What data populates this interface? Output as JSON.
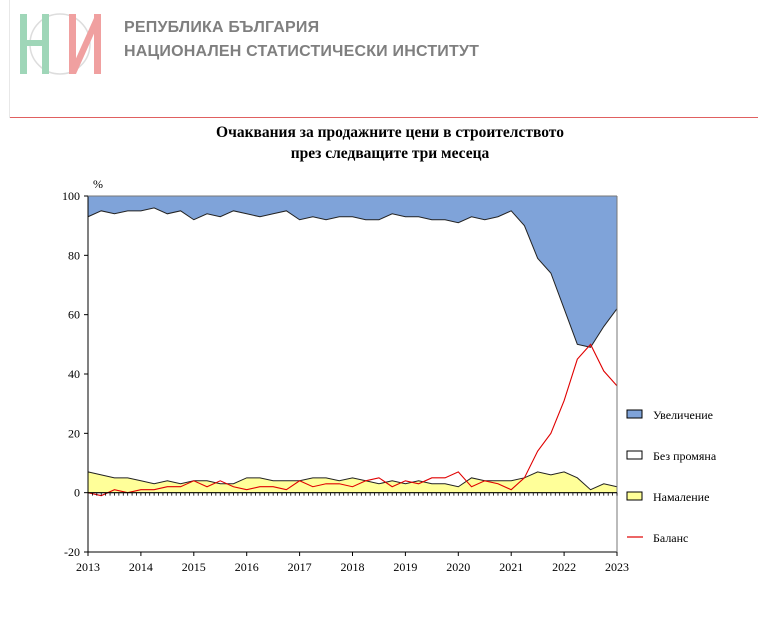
{
  "header": {
    "org_line1": "РЕПУБЛИКА БЪЛГАРИЯ",
    "org_line2": "НАЦИОНАЛЕН СТАТИСТИЧЕСКИ ИНСТИТУТ",
    "logo_text": "НИ"
  },
  "chart_data": {
    "type": "area",
    "title_line1": "Очаквания за продажните цени в строителството",
    "title_line2": "през следващите три месеца",
    "ylabel": "%",
    "xlabel": "",
    "ylim": [
      -20,
      100
    ],
    "yticks": [
      "100",
      "80",
      "60",
      "40",
      "20",
      "0",
      "-20"
    ],
    "xticks": [
      "2013",
      "2014",
      "2015",
      "2016",
      "2017",
      "2018",
      "2019",
      "2020",
      "2021",
      "2022",
      "2023"
    ],
    "grid": false,
    "legend_position": "right",
    "colors": {
      "increase": "#7fa3d9",
      "no_change": "#ffffff",
      "decrease": "#ffff99",
      "balance": "#e00000"
    },
    "x": [
      2013.0,
      2013.25,
      2013.5,
      2013.75,
      2014.0,
      2014.25,
      2014.5,
      2014.75,
      2015.0,
      2015.25,
      2015.5,
      2015.75,
      2016.0,
      2016.25,
      2016.5,
      2016.75,
      2017.0,
      2017.25,
      2017.5,
      2017.75,
      2018.0,
      2018.25,
      2018.5,
      2018.75,
      2019.0,
      2019.25,
      2019.5,
      2019.75,
      2020.0,
      2020.25,
      2020.5,
      2020.75,
      2021.0,
      2021.25,
      2021.5,
      2021.75,
      2022.0,
      2022.25,
      2022.5,
      2022.75,
      2023.0
    ],
    "series": [
      {
        "name": "Увеличение",
        "values": [
          7,
          5,
          6,
          5,
          5,
          4,
          6,
          5,
          8,
          6,
          7,
          5,
          6,
          7,
          6,
          5,
          8,
          7,
          8,
          7,
          7,
          8,
          8,
          6,
          7,
          7,
          8,
          8,
          9,
          7,
          8,
          7,
          5,
          10,
          21,
          26,
          38,
          50,
          51,
          44,
          38
        ]
      },
      {
        "name": "Без промяна",
        "values": [
          86,
          89,
          89,
          90,
          91,
          93,
          90,
          92,
          88,
          90,
          90,
          92,
          89,
          88,
          90,
          91,
          88,
          88,
          87,
          89,
          88,
          88,
          89,
          90,
          90,
          89,
          89,
          89,
          89,
          88,
          88,
          89,
          91,
          85,
          72,
          68,
          55,
          45,
          48,
          53,
          60
        ]
      },
      {
        "name": "Намаление",
        "values": [
          7,
          6,
          5,
          5,
          4,
          3,
          4,
          3,
          4,
          4,
          3,
          3,
          5,
          5,
          4,
          4,
          4,
          5,
          5,
          4,
          5,
          4,
          3,
          4,
          3,
          4,
          3,
          3,
          2,
          5,
          4,
          4,
          4,
          5,
          7,
          6,
          7,
          5,
          1,
          3,
          2
        ]
      },
      {
        "name": "Баланс",
        "values": [
          0,
          -1,
          1,
          0,
          1,
          1,
          2,
          2,
          4,
          2,
          4,
          2,
          1,
          2,
          2,
          1,
          4,
          2,
          3,
          3,
          2,
          4,
          5,
          2,
          4,
          3,
          5,
          5,
          7,
          2,
          4,
          3,
          1,
          5,
          14,
          20,
          31,
          45,
          50,
          41,
          36
        ]
      }
    ]
  }
}
